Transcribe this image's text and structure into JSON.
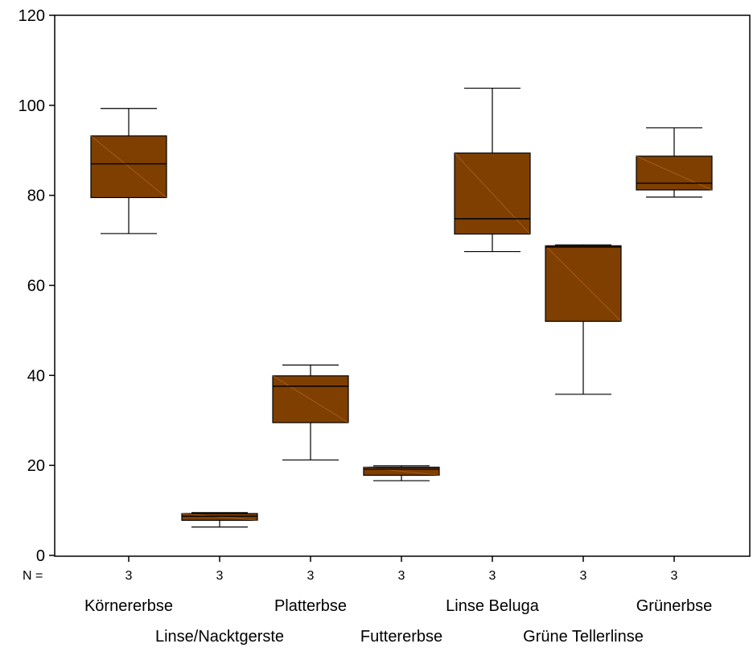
{
  "chart_data": {
    "type": "boxplot",
    "title": "",
    "xlabel": "",
    "ylabel": "",
    "ylim": [
      0,
      120
    ],
    "yticks": [
      "0",
      "20",
      "40",
      "60",
      "80",
      "100",
      "120"
    ],
    "n_label": "N =",
    "categories": [
      "Körnererbse",
      "Linse/Nacktgerste",
      "Platterbse",
      "Futtererbse",
      "Linse Beluga",
      "Grüne Tellerlinse",
      "Grünerbse"
    ],
    "n": [
      "3",
      "3",
      "3",
      "3",
      "3",
      "3",
      "3"
    ],
    "boxes": [
      {
        "min": 71.5,
        "q1": 79.5,
        "median": 87.0,
        "q3": 93.2,
        "max": 99.3
      },
      {
        "min": 6.3,
        "q1": 7.8,
        "median": 8.7,
        "q3": 9.3,
        "max": 9.5
      },
      {
        "min": 21.2,
        "q1": 29.5,
        "median": 37.6,
        "q3": 39.9,
        "max": 42.3
      },
      {
        "min": 16.6,
        "q1": 17.8,
        "median": 19.2,
        "q3": 19.6,
        "max": 19.9
      },
      {
        "min": 67.5,
        "q1": 71.4,
        "median": 74.8,
        "q3": 89.4,
        "max": 103.8
      },
      {
        "min": 35.8,
        "q1": 52.0,
        "median": 68.5,
        "q3": 68.8,
        "max": 69.0
      },
      {
        "min": 79.6,
        "q1": 81.2,
        "median": 82.7,
        "q3": 88.7,
        "max": 95.0
      }
    ],
    "colors": {
      "box_fill": "#7f3f00",
      "line": "#000000",
      "background": "#ffffff"
    },
    "grid": false,
    "legend": "none"
  }
}
